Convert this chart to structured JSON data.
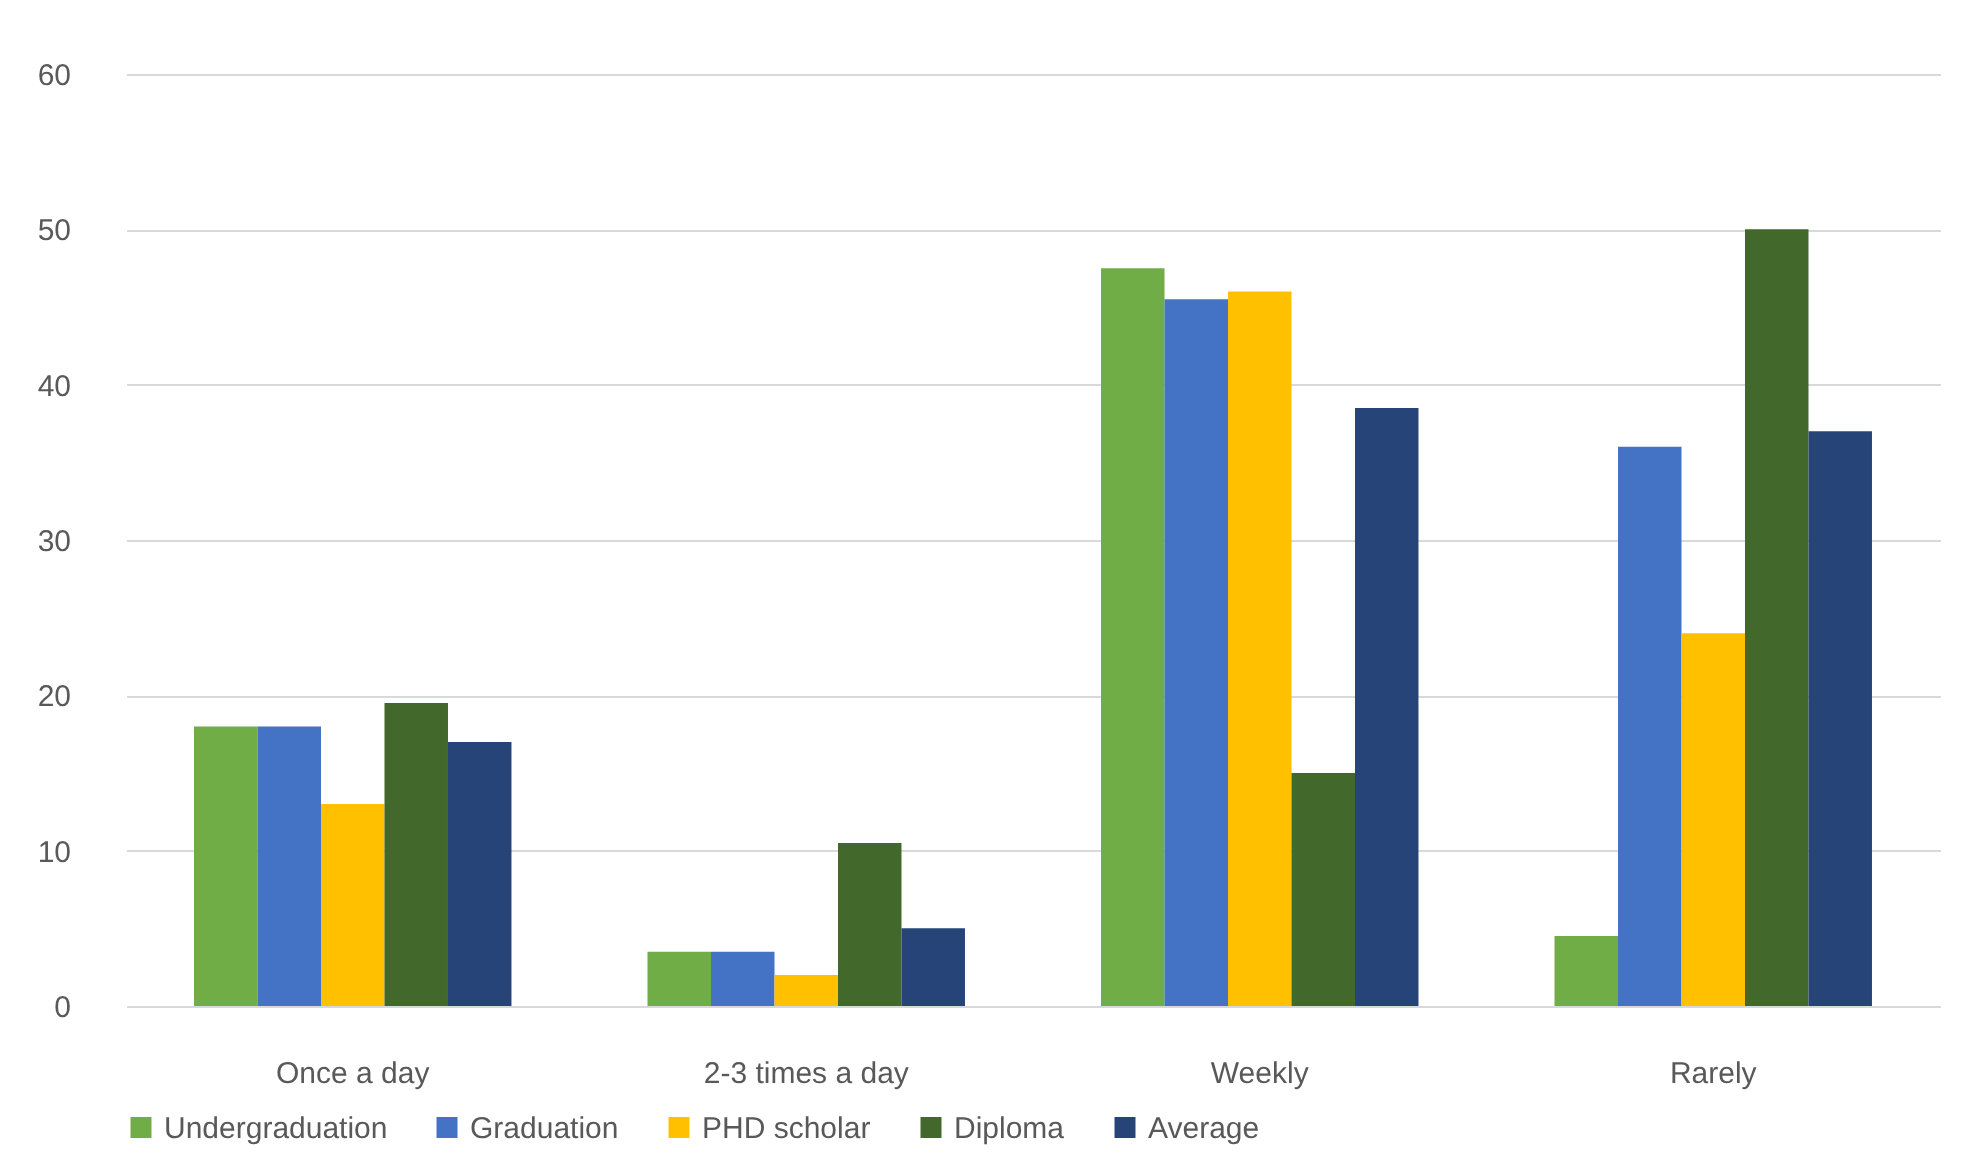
{
  "chart_data": {
    "type": "bar",
    "categories": [
      "Once a day",
      "2-3 times a day",
      "Weekly",
      "Rarely"
    ],
    "series": [
      {
        "name": "Undergraduation",
        "color": "#70ad47",
        "values": [
          18,
          3.5,
          47.5,
          4.5
        ]
      },
      {
        "name": "Graduation",
        "color": "#4472c4",
        "values": [
          18,
          3.5,
          45.5,
          36
        ]
      },
      {
        "name": "PHD scholar",
        "color": "#ffc000",
        "values": [
          13,
          2,
          46,
          24
        ]
      },
      {
        "name": "Diploma",
        "color": "#43682b",
        "values": [
          19.5,
          10.5,
          15,
          50
        ]
      },
      {
        "name": "Average",
        "color": "#264478",
        "values": [
          17,
          5,
          38.5,
          37
        ]
      }
    ],
    "ylim": [
      0,
      60
    ],
    "yticks": [
      0,
      10,
      20,
      30,
      40,
      50,
      60
    ],
    "grid": "y",
    "legend": "bottom"
  }
}
